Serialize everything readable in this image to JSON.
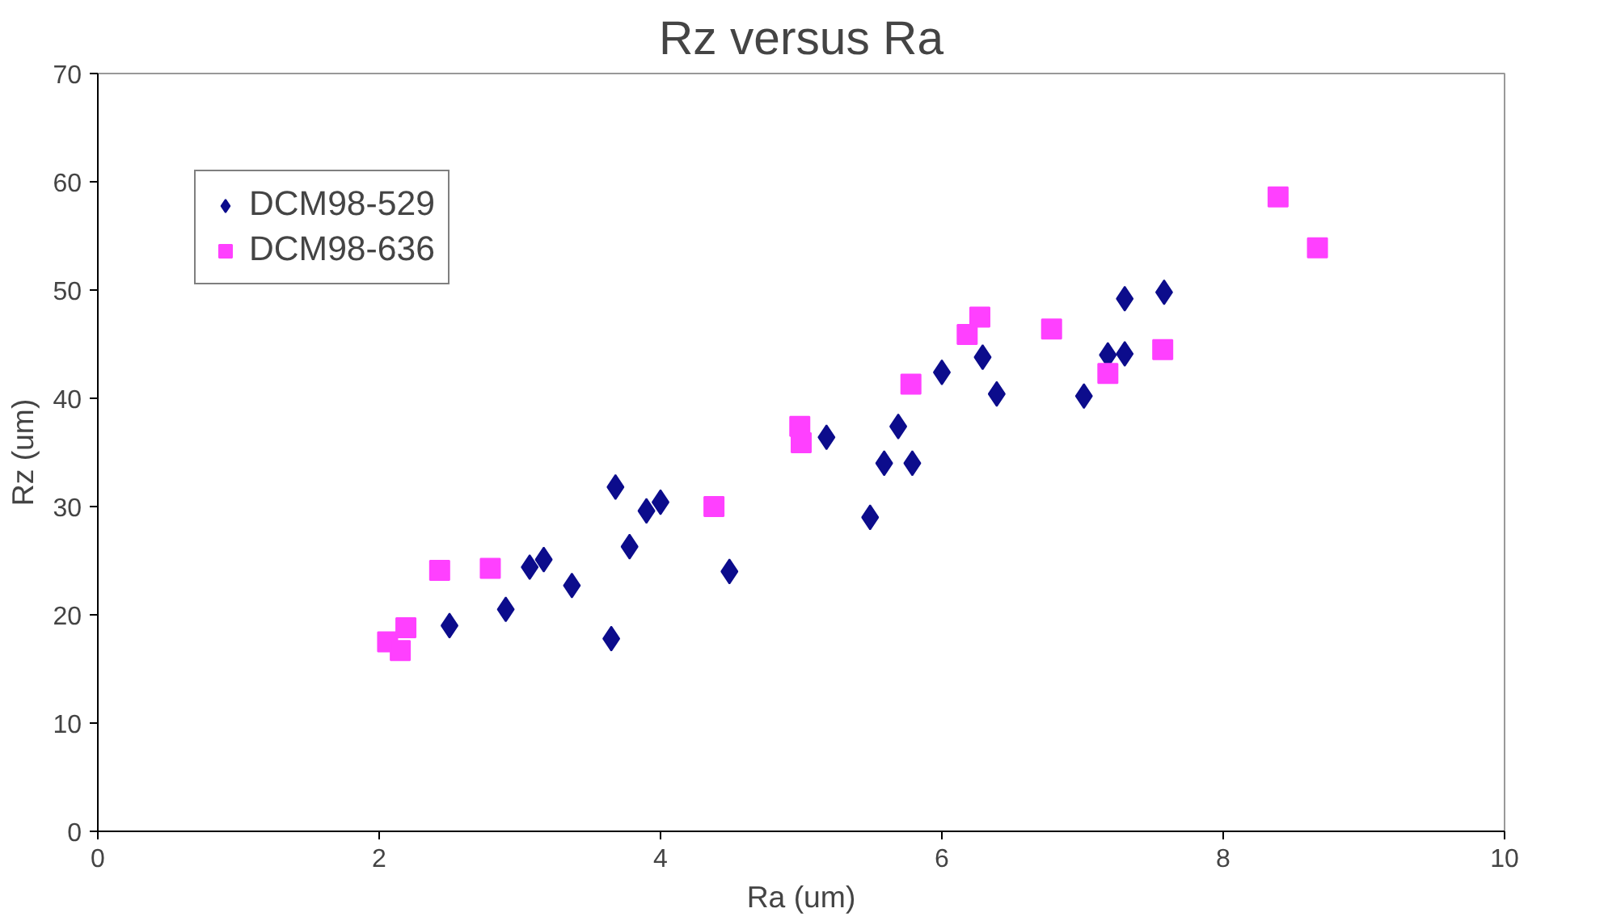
{
  "chart_data": {
    "type": "scatter",
    "title": "Rz versus Ra",
    "xlabel": "Ra (um)",
    "ylabel": "Rz (um)",
    "xlim": [
      0,
      10
    ],
    "xticks": [
      0,
      2,
      4,
      6,
      8,
      10
    ],
    "ylim": [
      0,
      70
    ],
    "yticks": [
      0,
      10,
      20,
      30,
      40,
      50,
      60,
      70
    ],
    "grid": false,
    "legend": "top left",
    "series": [
      {
        "name": "DCM98-529",
        "color": "#0c0c8c",
        "marker": "diamond",
        "x": [
          2.5,
          2.9,
          3.07,
          3.17,
          3.37,
          3.65,
          3.68,
          3.78,
          3.9,
          4.0,
          4.49,
          5.18,
          5.49,
          5.59,
          5.69,
          5.79,
          6.0,
          6.29,
          6.39,
          7.01,
          7.18,
          7.3,
          7.3,
          7.58
        ],
        "values": [
          19.0,
          20.5,
          24.4,
          25.1,
          22.7,
          17.8,
          31.8,
          26.3,
          29.6,
          30.4,
          24.0,
          36.4,
          29.0,
          34.0,
          37.4,
          34.0,
          42.4,
          43.8,
          40.4,
          40.2,
          44.0,
          44.1,
          49.2,
          49.8
        ]
      },
      {
        "name": "DCM98-636",
        "color": "#ff40ff",
        "marker": "square",
        "x": [
          2.06,
          2.15,
          2.19,
          2.43,
          2.79,
          4.38,
          4.99,
          5.0,
          5.78,
          6.18,
          6.27,
          6.78,
          7.18,
          7.57,
          8.39,
          8.67
        ],
        "values": [
          17.5,
          16.7,
          18.8,
          24.1,
          24.3,
          30.0,
          37.4,
          35.9,
          41.3,
          45.9,
          47.5,
          46.4,
          42.3,
          44.5,
          58.6,
          53.9
        ]
      }
    ]
  }
}
